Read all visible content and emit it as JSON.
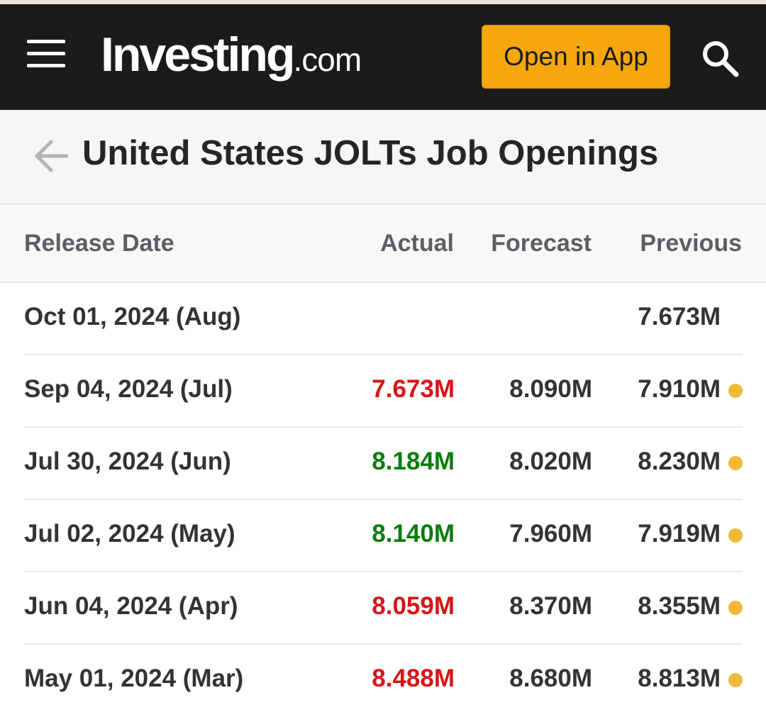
{
  "header": {
    "logo_main": "Investing",
    "logo_suffix": ".com",
    "open_app_label": "Open in App"
  },
  "page": {
    "title": "United States JOLTs Job Openings"
  },
  "colors": {
    "header_bg": "#1b1b1b",
    "accent": "#f5a70d",
    "positive": "#0b7d0b",
    "negative": "#d61515",
    "revision_dot": "#f0b93a"
  },
  "table": {
    "headers": {
      "date": "Release Date",
      "actual": "Actual",
      "forecast": "Forecast",
      "previous": "Previous"
    },
    "rows": [
      {
        "date": "Oct 01, 2024 (Aug)",
        "actual": "",
        "actual_trend": "",
        "forecast": "",
        "previous": "7.673M",
        "revised": false
      },
      {
        "date": "Sep 04, 2024 (Jul)",
        "actual": "7.673M",
        "actual_trend": "negative",
        "forecast": "8.090M",
        "previous": "7.910M",
        "revised": true
      },
      {
        "date": "Jul 30, 2024 (Jun)",
        "actual": "8.184M",
        "actual_trend": "positive",
        "forecast": "8.020M",
        "previous": "8.230M",
        "revised": true
      },
      {
        "date": "Jul 02, 2024 (May)",
        "actual": "8.140M",
        "actual_trend": "positive",
        "forecast": "7.960M",
        "previous": "7.919M",
        "revised": true
      },
      {
        "date": "Jun 04, 2024 (Apr)",
        "actual": "8.059M",
        "actual_trend": "negative",
        "forecast": "8.370M",
        "previous": "8.355M",
        "revised": true
      },
      {
        "date": "May 01, 2024 (Mar)",
        "actual": "8.488M",
        "actual_trend": "negative",
        "forecast": "8.680M",
        "previous": "8.813M",
        "revised": true
      }
    ]
  }
}
